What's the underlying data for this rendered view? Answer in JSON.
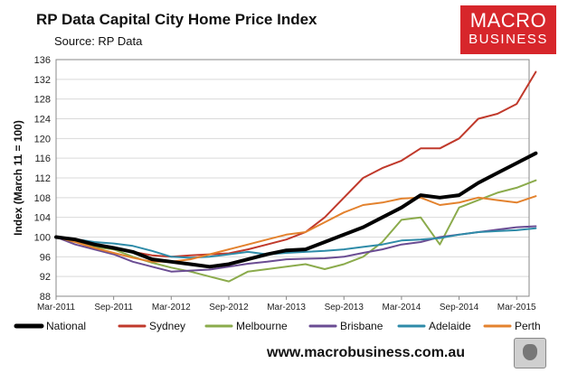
{
  "title": "RP Data Capital City Home Price Index",
  "subtitle": "Source: RP Data",
  "logo": {
    "line1": "MACRO",
    "line2": "BUSINESS"
  },
  "footer_url": "www.macrobusiness.com.au",
  "chart_data": {
    "type": "line",
    "title": "RP Data Capital City Home Price Index",
    "ylabel": "Index (March 11 = 100)",
    "xlabel": "",
    "ylim": [
      88,
      136
    ],
    "yticks": [
      88,
      92,
      96,
      100,
      104,
      108,
      112,
      116,
      120,
      124,
      128,
      132,
      136
    ],
    "x_tick_labels": [
      "Mar-2011",
      "Sep-2011",
      "Mar-2012",
      "Sep-2012",
      "Mar-2013",
      "Sep-2013",
      "Mar-2014",
      "Sep-2014",
      "Mar-2015"
    ],
    "x": [
      "Mar-2011",
      "May-2011",
      "Jul-2011",
      "Sep-2011",
      "Nov-2011",
      "Jan-2012",
      "Mar-2012",
      "May-2012",
      "Jul-2012",
      "Sep-2012",
      "Nov-2012",
      "Jan-2013",
      "Mar-2013",
      "May-2013",
      "Jul-2013",
      "Sep-2013",
      "Nov-2013",
      "Jan-2014",
      "Mar-2014",
      "May-2014",
      "Jul-2014",
      "Sep-2014",
      "Nov-2014",
      "Jan-2015",
      "Mar-2015",
      "May-2015"
    ],
    "grid": true,
    "legend_position": "bottom",
    "series": [
      {
        "name": "National",
        "color": "#000000",
        "width": 4,
        "values": [
          100,
          99.5,
          98.5,
          97.8,
          97,
          95.5,
          95,
          94.5,
          94,
          94.5,
          95.5,
          96.5,
          97.3,
          97.5,
          99,
          100.5,
          102,
          104,
          106,
          108.5,
          108,
          108.5,
          111,
          113,
          115,
          117
        ]
      },
      {
        "name": "Sydney",
        "color": "#c0392b",
        "width": 2,
        "values": [
          100,
          99.5,
          98.5,
          97.5,
          97,
          96.3,
          96,
          96.3,
          96.5,
          96.7,
          97.5,
          98.5,
          99.5,
          101,
          104,
          108,
          112,
          114,
          115.5,
          118,
          118,
          120,
          124,
          125,
          127,
          133.5
        ]
      },
      {
        "name": "Melbourne",
        "color": "#8bab4c",
        "width": 2,
        "values": [
          100,
          99,
          98,
          97.5,
          96,
          94.8,
          93.8,
          93,
          92,
          91,
          93,
          93.5,
          94,
          94.5,
          93.5,
          94.5,
          96,
          99,
          103.5,
          104,
          98.5,
          106,
          107.5,
          109,
          110,
          111.5
        ]
      },
      {
        "name": "Brisbane",
        "color": "#6a4c93",
        "width": 2,
        "values": [
          100,
          98.5,
          97.5,
          96.5,
          95,
          94,
          93,
          93.2,
          93.4,
          94,
          94.6,
          95,
          95.5,
          95.6,
          95.7,
          96,
          96.8,
          97.5,
          98.5,
          99,
          100,
          100.5,
          101,
          101.5,
          102,
          102.2
        ]
      },
      {
        "name": "Adelaide",
        "color": "#2e8ba8",
        "width": 2,
        "values": [
          100,
          99.6,
          99,
          98.7,
          98.2,
          97.2,
          96,
          95.8,
          96,
          96.5,
          97,
          96.5,
          96.8,
          97,
          97.2,
          97.5,
          98,
          98.5,
          99.3,
          99.5,
          99.8,
          100.5,
          101,
          101.2,
          101.4,
          101.8
        ]
      },
      {
        "name": "Perth",
        "color": "#e3822e",
        "width": 2,
        "values": [
          100,
          99,
          97.8,
          96.8,
          95.8,
          95,
          95,
          95.5,
          96.5,
          97.5,
          98.5,
          99.5,
          100.5,
          101,
          103,
          105,
          106.5,
          107,
          107.8,
          108,
          106.5,
          107,
          108,
          107.5,
          107,
          108.3
        ]
      }
    ]
  }
}
